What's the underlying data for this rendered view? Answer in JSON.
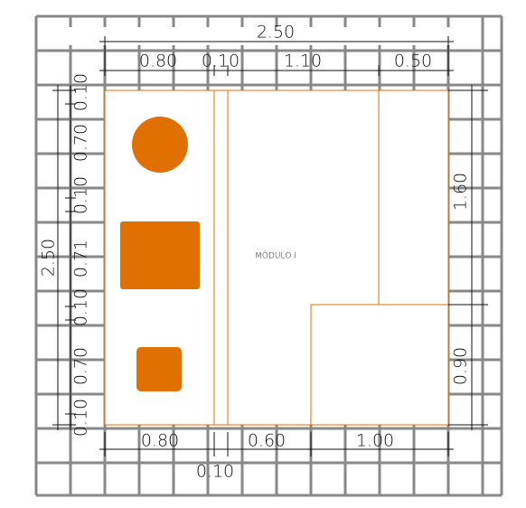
{
  "dimensions": {
    "top_total": "2.50",
    "top": [
      "0.80",
      "0.10",
      "1.10",
      "0.50"
    ],
    "left_total": "2.50",
    "left": [
      "0.10",
      "0.70",
      "0.10",
      "0.71",
      "0.10",
      "0.70",
      "0.10"
    ],
    "right": [
      "1.60",
      "0.90"
    ],
    "bottom": [
      "0.80",
      "0.10",
      "0.60",
      "1.00"
    ]
  },
  "label": "MÓDULO I"
}
